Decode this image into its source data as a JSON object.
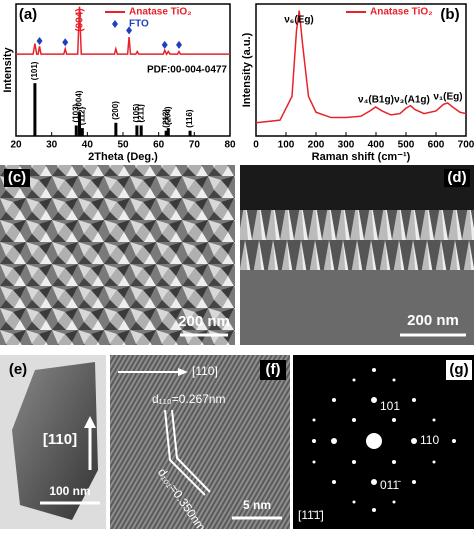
{
  "chart_data": [
    {
      "type": "line",
      "panel_label": "(a)",
      "xlabel": "2Theta (Deg.)",
      "ylabel": "Intensity",
      "xlim": [
        20,
        80
      ],
      "xticks": [
        20,
        30,
        40,
        50,
        60,
        70,
        80
      ],
      "ylim": [
        0,
        100
      ],
      "legend": "upper right",
      "series": [
        {
          "name": "Anatase TiO₂",
          "type": "line",
          "color": "#e8222a",
          "x": [
            20,
            24.8,
            25.3,
            25.8,
            26.2,
            26.6,
            27.0,
            33.4,
            33.8,
            34.2,
            37.3,
            37.8,
            38.3,
            47.6,
            48.0,
            48.4,
            51.3,
            51.7,
            52.1,
            53.6,
            54.0,
            54.4,
            61.3,
            61.7,
            62.2,
            62.7,
            63.2,
            65.3,
            65.7,
            66.1,
            80
          ],
          "values": [
            62,
            62,
            70,
            62,
            62,
            68,
            62,
            62,
            66,
            62,
            62,
            98,
            62,
            62,
            66,
            62,
            62,
            75,
            62,
            62,
            64,
            62,
            62,
            65,
            62,
            64,
            62,
            62,
            64,
            62,
            62
          ]
        },
        {
          "name": "FTO",
          "type": "scatter",
          "color": "#1f3fbf",
          "x": [
            26.6,
            33.8,
            51.7,
            61.7,
            65.7
          ],
          "values": [
            72,
            71,
            80,
            69,
            69
          ]
        }
      ],
      "annotations": [
        "(004)"
      ],
      "reference": {
        "label": "PDF:00-004-0477",
        "color": "#000000",
        "x": [
          25.3,
          36.9,
          37.8,
          38.6,
          48.0,
          53.9,
          55.1,
          62.1,
          62.7,
          68.8
        ],
        "values": [
          40,
          8,
          18,
          6,
          10,
          8,
          8,
          4,
          6,
          4
        ],
        "labels": [
          "(101)",
          "(103)",
          "(004)",
          "(112)",
          "(200)",
          "(105)",
          "(211)",
          "(213)",
          "(204)",
          "(116)"
        ]
      }
    },
    {
      "type": "line",
      "panel_label": "(b)",
      "xlabel": "Raman shift (cm⁻¹)",
      "ylabel": "Intensity (a.u.)",
      "xlim": [
        0,
        700
      ],
      "xticks": [
        0,
        100,
        200,
        300,
        400,
        500,
        600,
        700
      ],
      "ylim": [
        0,
        100
      ],
      "legend": "upper right",
      "series": [
        {
          "name": "Anatase TiO₂",
          "type": "line",
          "color": "#e8222a",
          "x": [
            0,
            80,
            120,
            135,
            144,
            155,
            175,
            200,
            250,
            300,
            350,
            380,
            399,
            420,
            450,
            480,
            500,
            515,
            530,
            560,
            600,
            625,
            639,
            655,
            680,
            700
          ],
          "values": [
            10,
            12,
            30,
            80,
            95,
            70,
            30,
            18,
            14,
            14,
            15,
            19,
            22,
            19,
            16,
            17,
            21,
            23,
            20,
            17,
            19,
            24,
            25,
            22,
            18,
            17
          ]
        }
      ],
      "annotations": [
        "ν₆(Eg)",
        "ν₄(B1g)",
        "ν₃(A1g)",
        "ν₁(Eg)"
      ]
    }
  ],
  "images": [
    {
      "label": "(c)",
      "scale_bar": "200 nm"
    },
    {
      "label": "(d)",
      "scale_bar": "200 nm"
    },
    {
      "label": "(e)",
      "scale_bar": "100 nm",
      "direction": "[110]"
    },
    {
      "label": "(f)",
      "scale_bar": "5 nm",
      "direction": "[110]",
      "annotations": [
        "d₁₁₀=0.267nm",
        "d₁₀₁=0.350nm"
      ]
    },
    {
      "label": "(g)",
      "zone_axis": "[11̄1̄]",
      "spots": [
        "101",
        "110",
        "011̄"
      ]
    }
  ]
}
